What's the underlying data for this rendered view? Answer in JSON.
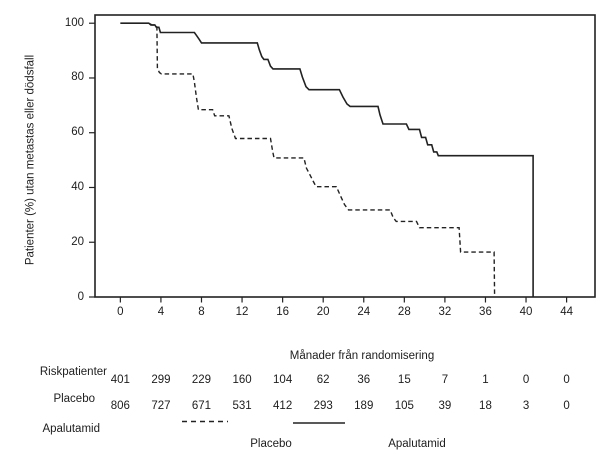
{
  "colors": {
    "line": "#222222",
    "text": "#1d1d1d",
    "background": "#ffffff"
  },
  "chart_data": {
    "type": "line",
    "subtype": "kaplan_meier_step",
    "title": "",
    "xlabel": "Månader från randomisering",
    "ylabel": "Patienter (%) utan metastas eller dödsfall",
    "xlim": [
      -2.5,
      46.8
    ],
    "ylim": [
      0,
      103
    ],
    "xticks": [
      0,
      4,
      8,
      12,
      16,
      20,
      24,
      28,
      32,
      36,
      40,
      44
    ],
    "yticks": [
      0,
      20,
      40,
      60,
      80,
      100
    ],
    "grid": false,
    "frame": true,
    "legend": {
      "position": "below-chart",
      "items": [
        {
          "label": "Placebo",
          "line_style": "dashed"
        },
        {
          "label": "Apalutamid",
          "line_style": "solid"
        }
      ]
    },
    "series": [
      {
        "name": "Apalutamid",
        "line_style": "solid",
        "points": [
          [
            0,
            100
          ],
          [
            2.8,
            100
          ],
          [
            3.0,
            99.4
          ],
          [
            3.4,
            99.4
          ],
          [
            3.55,
            98.5
          ],
          [
            3.8,
            98.5
          ],
          [
            3.95,
            96.6
          ],
          [
            7.3,
            96.6
          ],
          [
            7.5,
            95.6
          ],
          [
            7.75,
            94.2
          ],
          [
            8.0,
            92.8
          ],
          [
            13.5,
            92.8
          ],
          [
            13.7,
            90.3
          ],
          [
            13.95,
            87.8
          ],
          [
            14.15,
            86.8
          ],
          [
            14.55,
            86.8
          ],
          [
            14.8,
            84.3
          ],
          [
            15.05,
            83.3
          ],
          [
            17.7,
            83.3
          ],
          [
            17.95,
            80.3
          ],
          [
            18.3,
            76.8
          ],
          [
            18.6,
            75.7
          ],
          [
            21.6,
            75.7
          ],
          [
            21.95,
            73.0
          ],
          [
            22.35,
            70.5
          ],
          [
            22.65,
            69.6
          ],
          [
            25.4,
            69.6
          ],
          [
            25.6,
            66.5
          ],
          [
            25.9,
            63.2
          ],
          [
            28.2,
            63.2
          ],
          [
            28.45,
            61.2
          ],
          [
            29.5,
            61.2
          ],
          [
            29.7,
            58.3
          ],
          [
            30.1,
            58.3
          ],
          [
            30.3,
            55.6
          ],
          [
            30.7,
            55.6
          ],
          [
            30.9,
            53.0
          ],
          [
            31.2,
            53.0
          ],
          [
            31.35,
            51.6
          ],
          [
            40.7,
            51.6
          ],
          [
            40.7,
            0
          ]
        ]
      },
      {
        "name": "Placebo",
        "line_style": "dashed",
        "points": [
          [
            0,
            100
          ],
          [
            2.9,
            100
          ],
          [
            3.1,
            99.3
          ],
          [
            3.5,
            99.3
          ],
          [
            3.6,
            98.5
          ],
          [
            3.65,
            83.5
          ],
          [
            3.85,
            82.0
          ],
          [
            4.05,
            81.5
          ],
          [
            7.15,
            81.5
          ],
          [
            7.3,
            78.5
          ],
          [
            7.5,
            73.0
          ],
          [
            7.7,
            68.4
          ],
          [
            9.1,
            68.4
          ],
          [
            9.3,
            66.2
          ],
          [
            10.7,
            66.2
          ],
          [
            11.0,
            61.5
          ],
          [
            11.35,
            57.9
          ],
          [
            14.8,
            57.9
          ],
          [
            15.0,
            53.5
          ],
          [
            15.15,
            50.8
          ],
          [
            18.1,
            50.8
          ],
          [
            18.35,
            47.0
          ],
          [
            18.7,
            44.6
          ],
          [
            19.05,
            42.0
          ],
          [
            19.3,
            40.3
          ],
          [
            21.3,
            40.3
          ],
          [
            21.7,
            37.0
          ],
          [
            22.1,
            33.8
          ],
          [
            22.5,
            31.8
          ],
          [
            26.6,
            31.8
          ],
          [
            26.9,
            29.0
          ],
          [
            27.2,
            27.6
          ],
          [
            29.2,
            27.6
          ],
          [
            29.5,
            25.3
          ],
          [
            33.4,
            25.3
          ],
          [
            33.55,
            16.4
          ],
          [
            36.85,
            16.4
          ],
          [
            36.9,
            0
          ]
        ]
      }
    ],
    "at_risk_table": {
      "header": "Riskpatienter",
      "x_values": [
        0,
        4,
        8,
        12,
        16,
        20,
        24,
        28,
        32,
        36,
        40,
        44
      ],
      "rows": [
        {
          "label": "Placebo",
          "values": [
            401,
            299,
            229,
            160,
            104,
            62,
            36,
            15,
            7,
            1,
            0,
            0
          ]
        },
        {
          "label": "Apalutamid",
          "values": [
            806,
            727,
            671,
            531,
            412,
            293,
            189,
            105,
            39,
            18,
            3,
            0
          ]
        }
      ]
    }
  }
}
